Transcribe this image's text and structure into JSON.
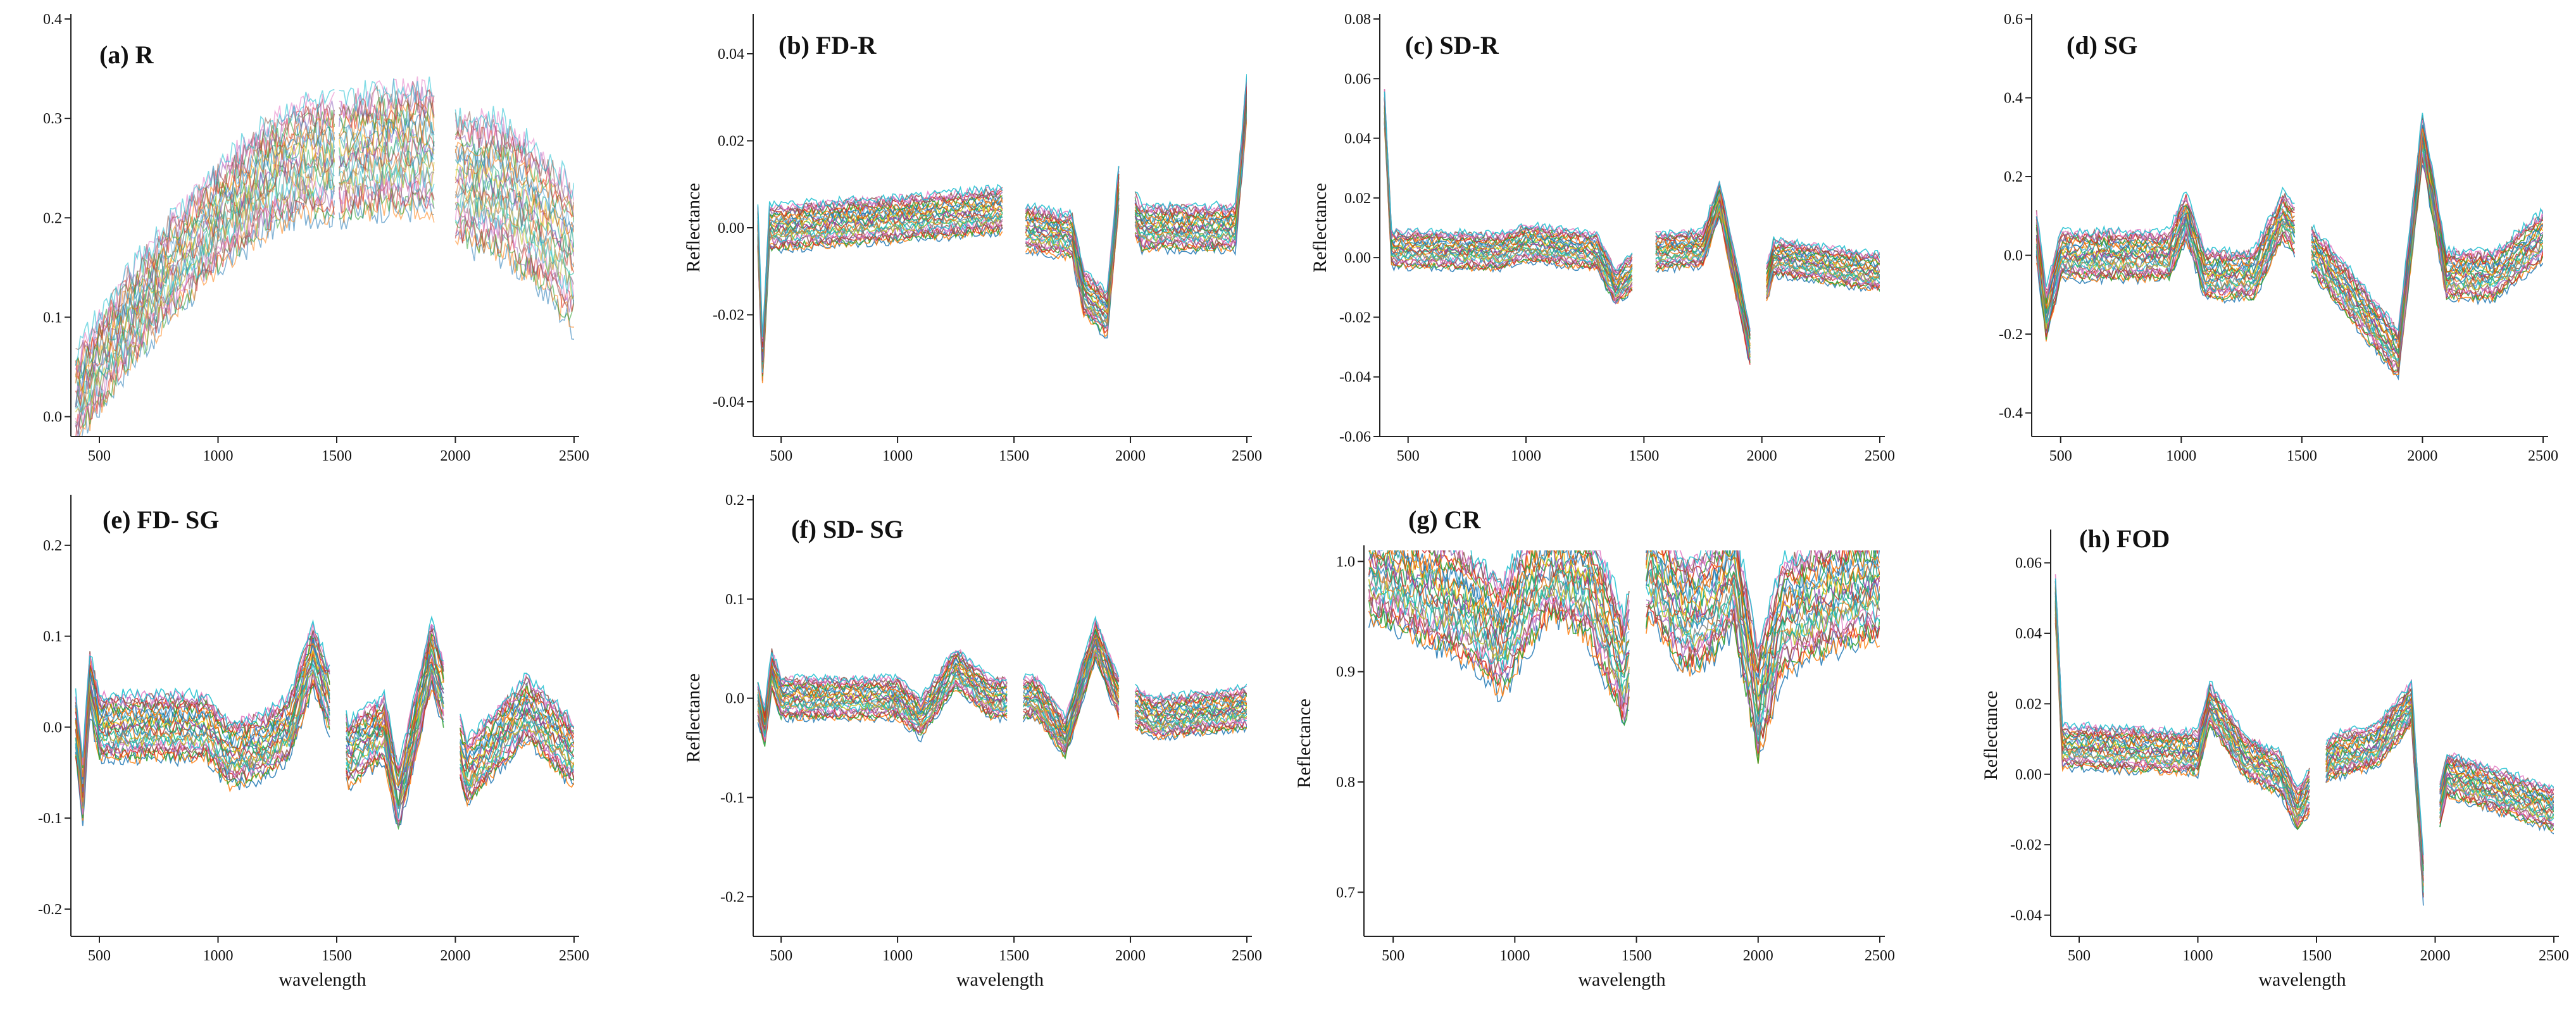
{
  "x_tick_labels": [
    "500",
    "1000",
    "1500",
    "2000",
    "2500"
  ],
  "x_axis_title": "wavelength",
  "y_axis_title": "Reflectance",
  "chart_data": [
    {
      "id": "a",
      "type": "line",
      "title": "(a) R",
      "xlim": [
        380,
        2500
      ],
      "ylim": [
        -0.02,
        0.4
      ],
      "yticks": [
        0.0,
        0.1,
        0.2,
        0.3,
        0.4
      ],
      "ytick_labels": [
        "0.0",
        "0.1",
        "0.2",
        "0.3",
        "0.4"
      ],
      "ylabel": "",
      "xlabel": "",
      "gaps": [
        [
          1495,
          1505
        ],
        [
          1920,
          1990
        ]
      ],
      "mean_curve": [
        [
          400,
          0.02
        ],
        [
          600,
          0.09
        ],
        [
          800,
          0.15
        ],
        [
          1000,
          0.2
        ],
        [
          1200,
          0.24
        ],
        [
          1350,
          0.26
        ],
        [
          1480,
          0.26
        ],
        [
          1550,
          0.26
        ],
        [
          1700,
          0.27
        ],
        [
          1900,
          0.27
        ],
        [
          2000,
          0.24
        ],
        [
          2200,
          0.23
        ],
        [
          2350,
          0.2
        ],
        [
          2500,
          0.16
        ]
      ],
      "spread": 0.07
    },
    {
      "id": "b",
      "type": "line",
      "title": "(b) FD-R",
      "xlim": [
        380,
        2500
      ],
      "ylim": [
        -0.048,
        0.048
      ],
      "yticks": [
        -0.04,
        -0.02,
        0.0,
        0.02,
        0.04
      ],
      "ytick_labels": [
        "-0.04",
        "-0.02",
        "0.00",
        "0.02",
        "0.04"
      ],
      "ylabel": "Reflectance",
      "xlabel": "",
      "gaps": [
        [
          1460,
          1540
        ],
        [
          1960,
          2010
        ]
      ],
      "mean_curve": [
        [
          400,
          0.0
        ],
        [
          420,
          -0.03
        ],
        [
          450,
          0.0
        ],
        [
          1000,
          0.002
        ],
        [
          1450,
          0.004
        ],
        [
          1550,
          0.0
        ],
        [
          1750,
          -0.002
        ],
        [
          1800,
          -0.015
        ],
        [
          1900,
          -0.02
        ],
        [
          1950,
          0.01
        ],
        [
          2050,
          0.0
        ],
        [
          2450,
          0.0
        ],
        [
          2500,
          0.03
        ]
      ],
      "spread": 0.005
    },
    {
      "id": "c",
      "type": "line",
      "title": "(c) SD-R",
      "xlim": [
        380,
        2500
      ],
      "ylim": [
        -0.06,
        0.08
      ],
      "yticks": [
        -0.06,
        -0.04,
        -0.02,
        0.0,
        0.02,
        0.04,
        0.06,
        0.08
      ],
      "ytick_labels": [
        "-0.06",
        "-0.04",
        "-0.02",
        "0.00",
        "0.02",
        "0.04",
        "0.06",
        "0.08"
      ],
      "ylabel": "Reflectance",
      "xlabel": "",
      "gaps": [
        [
          1460,
          1540
        ],
        [
          1960,
          2010
        ]
      ],
      "mean_curve": [
        [
          400,
          0.05
        ],
        [
          430,
          0.003
        ],
        [
          900,
          0.002
        ],
        [
          1000,
          0.005
        ],
        [
          1300,
          0.002
        ],
        [
          1380,
          -0.01
        ],
        [
          1450,
          -0.005
        ],
        [
          1550,
          0.002
        ],
        [
          1750,
          0.003
        ],
        [
          1820,
          0.02
        ],
        [
          1950,
          -0.03
        ],
        [
          2050,
          0.0
        ],
        [
          2500,
          -0.005
        ]
      ],
      "spread": 0.006
    },
    {
      "id": "d",
      "type": "line",
      "title": "(d) SG",
      "xlim": [
        380,
        2500
      ],
      "ylim": [
        -0.46,
        0.6
      ],
      "yticks": [
        -0.4,
        -0.2,
        0.0,
        0.2,
        0.4,
        0.6
      ],
      "ytick_labels": [
        "-0.4",
        "-0.2",
        "0.0",
        "0.2",
        "0.4",
        "0.6"
      ],
      "ylabel": "",
      "xlabel": "",
      "gaps": [
        [
          1480,
          1530
        ]
      ],
      "mean_curve": [
        [
          400,
          0.05
        ],
        [
          440,
          -0.15
        ],
        [
          500,
          0.0
        ],
        [
          950,
          0.0
        ],
        [
          1020,
          0.1
        ],
        [
          1100,
          -0.05
        ],
        [
          1300,
          -0.05
        ],
        [
          1420,
          0.1
        ],
        [
          1560,
          0.0
        ],
        [
          1700,
          -0.1
        ],
        [
          1900,
          -0.25
        ],
        [
          2000,
          0.3
        ],
        [
          2100,
          -0.05
        ],
        [
          2300,
          -0.05
        ],
        [
          2500,
          0.05
        ]
      ],
      "spread": 0.06
    },
    {
      "id": "e",
      "type": "line",
      "title": "(e) FD- SG",
      "xlim": [
        380,
        2500
      ],
      "ylim": [
        -0.23,
        0.25
      ],
      "yticks": [
        -0.2,
        -0.1,
        0.0,
        0.1,
        0.2
      ],
      "ytick_labels": [
        "-0.2",
        "-0.1",
        "0.0",
        "0.1",
        "0.2"
      ],
      "ylabel": "",
      "xlabel": "wavelength",
      "gaps": [
        [
          1480,
          1530
        ],
        [
          1960,
          2010
        ]
      ],
      "mean_curve": [
        [
          400,
          0.0
        ],
        [
          430,
          -0.07
        ],
        [
          460,
          0.05
        ],
        [
          500,
          0.0
        ],
        [
          950,
          0.0
        ],
        [
          1050,
          -0.03
        ],
        [
          1200,
          -0.02
        ],
        [
          1300,
          0.0
        ],
        [
          1400,
          0.08
        ],
        [
          1550,
          -0.03
        ],
        [
          1700,
          0.0
        ],
        [
          1760,
          -0.08
        ],
        [
          1900,
          0.08
        ],
        [
          2050,
          -0.05
        ],
        [
          2300,
          0.02
        ],
        [
          2500,
          -0.03
        ]
      ],
      "spread": 0.035
    },
    {
      "id": "f",
      "type": "line",
      "title": "(f) SD- SG",
      "xlim": [
        380,
        2500
      ],
      "ylim": [
        -0.24,
        0.2
      ],
      "yticks": [
        -0.2,
        -0.1,
        0.0,
        0.1,
        0.2
      ],
      "ytick_labels": [
        "-0.2",
        "-0.1",
        "0.0",
        "0.1",
        "0.2"
      ],
      "ylabel": "Reflectance",
      "xlabel": "wavelength",
      "gaps": [
        [
          1480,
          1530
        ],
        [
          1960,
          2010
        ]
      ],
      "mean_curve": [
        [
          400,
          0.0
        ],
        [
          430,
          -0.03
        ],
        [
          460,
          0.03
        ],
        [
          500,
          0.0
        ],
        [
          1000,
          0.0
        ],
        [
          1100,
          -0.02
        ],
        [
          1250,
          0.03
        ],
        [
          1400,
          0.0
        ],
        [
          1600,
          0.0
        ],
        [
          1720,
          -0.04
        ],
        [
          1850,
          0.06
        ],
        [
          1950,
          0.0
        ],
        [
          2100,
          -0.02
        ],
        [
          2500,
          -0.01
        ]
      ],
      "spread": 0.02
    },
    {
      "id": "g",
      "type": "line",
      "title": "(g) CR",
      "xlim": [
        380,
        2500
      ],
      "ylim": [
        0.66,
        1.01
      ],
      "yticks": [
        0.7,
        0.8,
        0.9,
        1.0
      ],
      "ytick_labels": [
        "0.7",
        "0.8",
        "0.9",
        "1.0"
      ],
      "ylabel": "Reflectance",
      "xlabel": "wavelength",
      "gaps": [
        [
          1480,
          1530
        ]
      ],
      "mean_curve": [
        [
          400,
          1.0
        ],
        [
          600,
          0.98
        ],
        [
          800,
          0.96
        ],
        [
          950,
          0.93
        ],
        [
          1050,
          0.97
        ],
        [
          1150,
          1.0
        ],
        [
          1300,
          0.98
        ],
        [
          1400,
          0.93
        ],
        [
          1450,
          0.9
        ],
        [
          1550,
          1.0
        ],
        [
          1700,
          0.95
        ],
        [
          1800,
          0.96
        ],
        [
          1900,
          0.99
        ],
        [
          2000,
          0.87
        ],
        [
          2100,
          0.95
        ],
        [
          2300,
          0.97
        ],
        [
          2500,
          0.98
        ]
      ],
      "spread": 0.05
    },
    {
      "id": "h",
      "type": "line",
      "title": "(h) FOD",
      "xlim": [
        380,
        2500
      ],
      "ylim": [
        -0.046,
        0.068
      ],
      "yticks": [
        -0.04,
        -0.02,
        0.0,
        0.02,
        0.04,
        0.06
      ],
      "ytick_labels": [
        "-0.04",
        "-0.02",
        "0.00",
        "0.02",
        "0.04",
        "0.06"
      ],
      "ylabel": "Reflectance",
      "xlabel": "wavelength",
      "gaps": [
        [
          1480,
          1530
        ],
        [
          1960,
          2010
        ]
      ],
      "mean_curve": [
        [
          400,
          0.05
        ],
        [
          430,
          0.008
        ],
        [
          1000,
          0.006
        ],
        [
          1050,
          0.02
        ],
        [
          1200,
          0.005
        ],
        [
          1350,
          0.0
        ],
        [
          1420,
          -0.01
        ],
        [
          1560,
          0.005
        ],
        [
          1750,
          0.008
        ],
        [
          1900,
          0.02
        ],
        [
          1950,
          -0.03
        ],
        [
          2050,
          0.0
        ],
        [
          2500,
          -0.01
        ]
      ],
      "spread": 0.006
    }
  ]
}
